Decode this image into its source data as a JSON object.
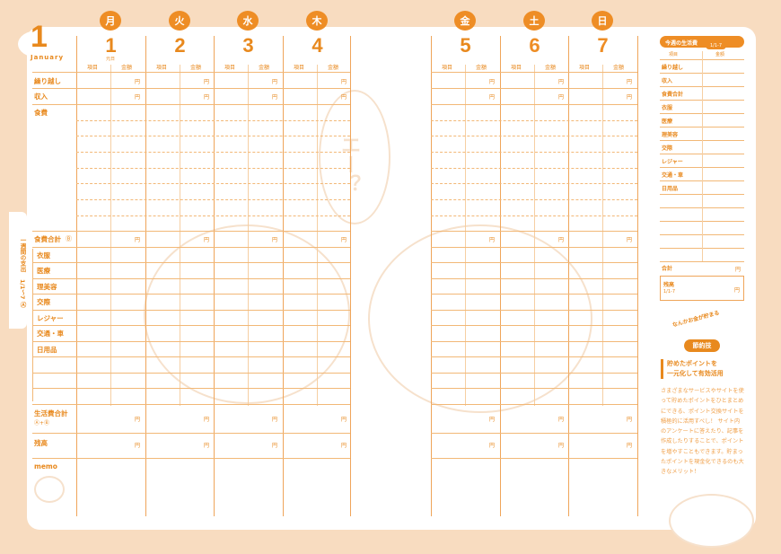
{
  "month": {
    "number": "1",
    "name": "January"
  },
  "columns": {
    "item": "項目",
    "amount": "金額"
  },
  "days": [
    {
      "dow": "月",
      "date": "1",
      "note": "元日"
    },
    {
      "dow": "火",
      "date": "2"
    },
    {
      "dow": "水",
      "date": "3"
    },
    {
      "dow": "木",
      "date": "4"
    },
    {
      "dow": "金",
      "date": "5"
    },
    {
      "dow": "土",
      "date": "6"
    },
    {
      "dow": "日",
      "date": "7"
    }
  ],
  "rows": {
    "carryover": "繰り越し",
    "income": "収入",
    "food": "食費",
    "food_total": "食費合計",
    "clothing": "衣服",
    "medical": "医療",
    "beauty": "理美容",
    "social": "交際",
    "leisure": "レジャー",
    "transport": "交通・車",
    "daily": "日用品",
    "living_total": "生活費合計",
    "living_total_formula": "Ⓐ+Ⓑ",
    "balance": "残高",
    "memo": "memo",
    "yen": "円",
    "mark_a": "Ⓐ",
    "mark_b": "Ⓑ"
  },
  "weekly_tab": {
    "title": "一週間の支出",
    "range": "1/1〜7",
    "mark": "Ⓐ"
  },
  "summary": {
    "title": "今週の生活費",
    "range": "1/1-7",
    "items": [
      "繰り越し",
      "収入",
      "食費合計",
      "衣服",
      "医療",
      "理美容",
      "交際",
      "レジャー",
      "交通・車",
      "日用品"
    ],
    "total": "合計",
    "balance": "残高",
    "balance_range": "1/1-7",
    "yen": "円"
  },
  "tip": {
    "tagline": "なんかお金が貯まる",
    "badge": "節約技",
    "headline_1": "貯めたポイントを",
    "headline_2": "一元化して有効活用",
    "body": "さまざまなサービスやサイトを使って貯めたポイントをひとまとめにできる、ポイント交換サイトを積極的に活用すべし！ サイト内のアンケートに答えたり、記事を作成したりすることで、ポイントを増やすこともできます。貯まったポイントを現金化できるのも大きなメリット！"
  },
  "illustration_text": "エー？",
  "colors": {
    "accent": "#e8891e",
    "background": "#f8dcc0",
    "line": "#f2b877"
  }
}
